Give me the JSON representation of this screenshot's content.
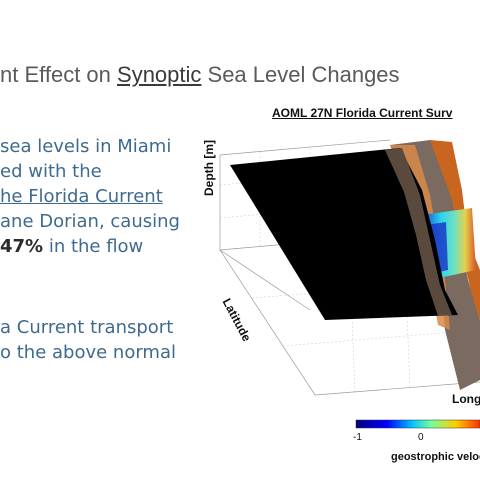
{
  "slide": {
    "title_before": "nt Effect on ",
    "title_underlined": "Synoptic",
    "title_after": " Sea Level Changes"
  },
  "bullet1": {
    "line1": "sea levels in Miami",
    "line2": "ed with the",
    "line3": "he Florida Current",
    "line4": "ane Dorian, causing",
    "line5_pre": "",
    "line5_bold": "47%",
    "line5_post": " in the flow"
  },
  "bullet2": {
    "line1": "a Current transport",
    "line2": "o the above normal"
  },
  "figure": {
    "title": "AOML 27N Florida Current Surv",
    "depth_label": "Depth [m]",
    "latitude_label": "Latitude",
    "longitude_label": "Long",
    "colorbar_ticks": [
      "-1",
      "0"
    ],
    "colorbar_label": "geostrophic veloc",
    "colors": {
      "land": "#000000",
      "gulf_stream_hot": "#e07a1a",
      "cold": "#0a1aa8",
      "cyan": "#28d6f0"
    }
  }
}
